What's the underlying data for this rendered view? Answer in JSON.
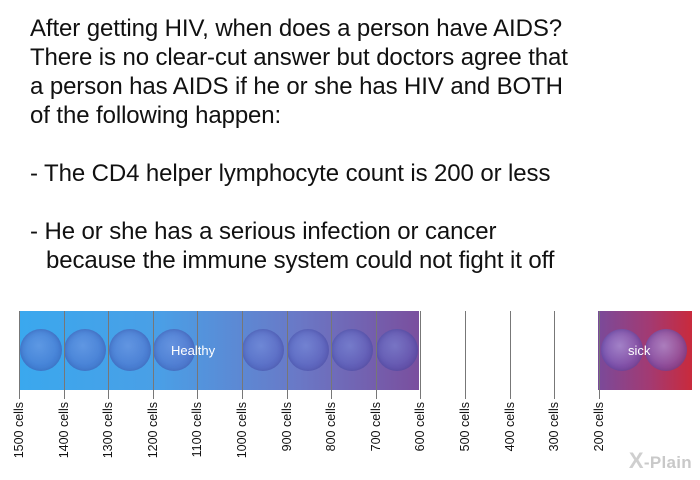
{
  "text": {
    "paragraph_lines": [
      "After getting HIV, when does a person have AIDS?",
      "There is no clear-cut answer but doctors agree that",
      "a person has AIDS if he or she has HIV and BOTH",
      "of the following happen:"
    ],
    "bullet1": "- The CD4 helper lymphocyte count is 200 or less",
    "bullet2_line1": "- He or she has a serious infection or cancer",
    "bullet2_line2": "because the immune system could not fight it off"
  },
  "scale": {
    "healthy_label": "Healthy",
    "sick_label": "sick",
    "tick_labels": [
      "1500 cells",
      "1400 cells",
      "1300 cells",
      "1200 cells",
      "1100 cells",
      "1000 cells",
      "900 cells",
      "800 cells",
      "700 cells",
      "600 cells",
      "500 cells",
      "400 cells",
      "300 cells",
      "200 cells"
    ],
    "colors": {
      "healthy_start": "#3aa8ee",
      "healthy_end": "#7a4f9e",
      "sick_end": "#c92a3c"
    }
  },
  "logo": {
    "mark": "X",
    "text": "-Plain"
  }
}
